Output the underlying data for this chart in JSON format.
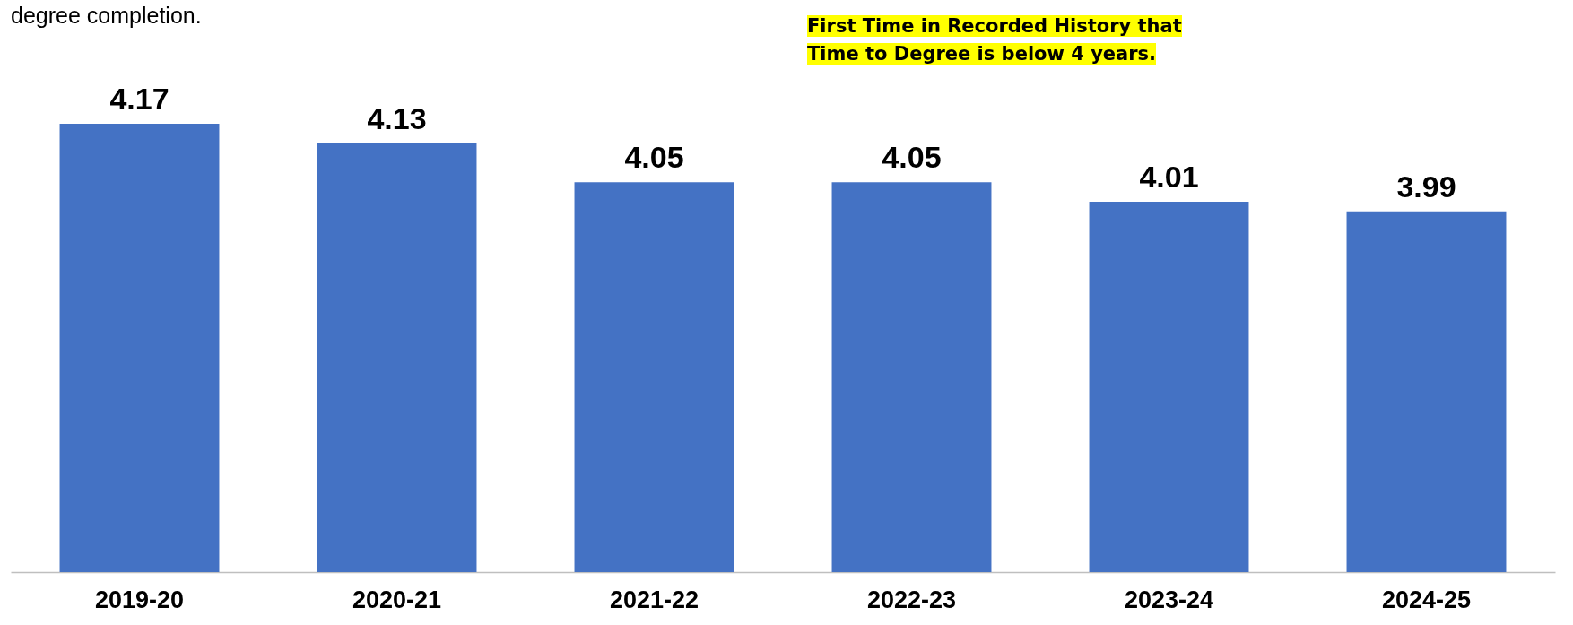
{
  "chart_data": {
    "type": "bar",
    "subtitle": "degree completion.",
    "categories": [
      "2019-20",
      "2020-21",
      "2021-22",
      "2022-23",
      "2023-24",
      "2024-25"
    ],
    "values": [
      4.17,
      4.13,
      4.05,
      4.05,
      4.01,
      3.99
    ],
    "color": "#4472c4",
    "ylim": [
      3.25,
      4.17
    ],
    "data_labels": true,
    "annotations": [
      "First Time in Recorded History that Time to Degree is below 4 years."
    ]
  }
}
